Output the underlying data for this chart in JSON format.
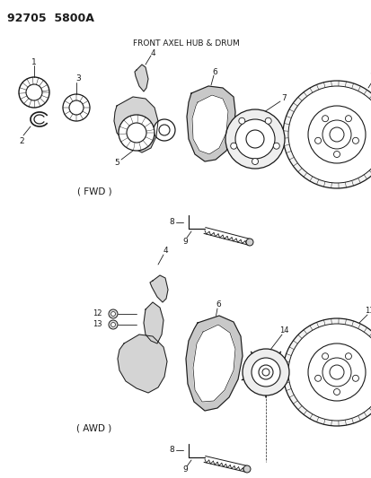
{
  "title": "92705  5800A",
  "subtitle": "FRONT AXEL HUB & DRUM",
  "bg_color": "#ffffff",
  "line_color": "#1a1a1a",
  "text_color": "#1a1a1a",
  "fig_width": 4.14,
  "fig_height": 5.33,
  "dpi": 100,
  "fwd_label": "( FWD )",
  "awd_label": "( AWD )"
}
